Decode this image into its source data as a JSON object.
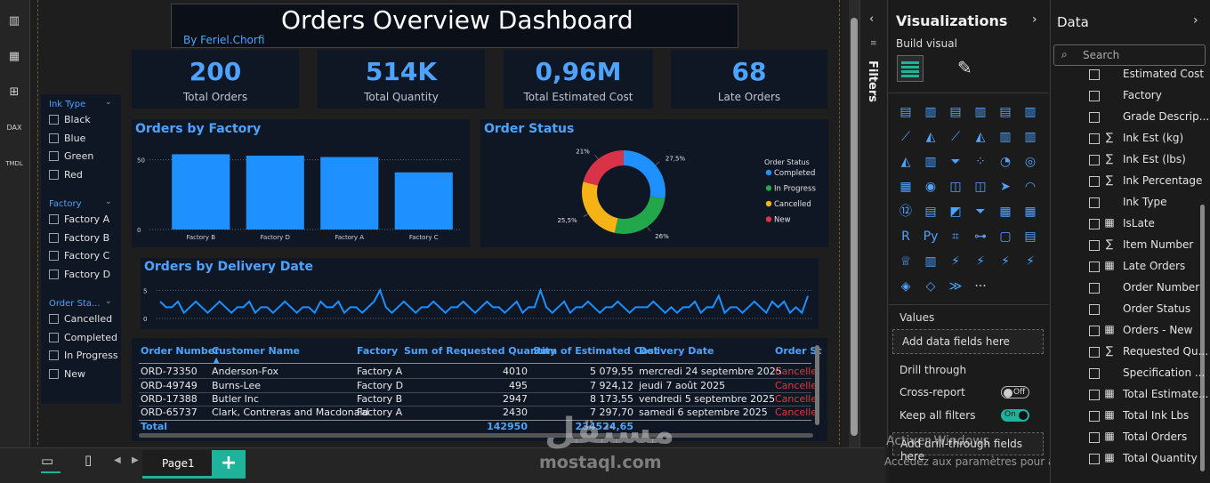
{
  "report": {
    "title": "Orders Overview Dashboard",
    "byline": "By Feriel.Chorfi"
  },
  "kpis": [
    {
      "value": "200",
      "label": "Total Orders"
    },
    {
      "value": "514K",
      "label": "Total Quantity"
    },
    {
      "value": "0,96M",
      "label": "Total Estimated Cost"
    },
    {
      "value": "68",
      "label": "Late Orders"
    }
  ],
  "slicers": [
    {
      "title": "Ink Type",
      "items": [
        "Black",
        "Blue",
        "Green",
        "Red"
      ]
    },
    {
      "title": "Factory",
      "items": [
        "Factory A",
        "Factory B",
        "Factory C",
        "Factory D"
      ]
    },
    {
      "title": "Order Sta...",
      "items": [
        "Cancelled",
        "Completed",
        "In Progress",
        "New"
      ]
    }
  ],
  "chart_data": [
    {
      "type": "bar",
      "title": "Orders by Factory",
      "categories": [
        "Factory B",
        "Factory D",
        "Factory A",
        "Factory C"
      ],
      "values": [
        54,
        53,
        52,
        41
      ],
      "ylim": [
        0,
        60
      ],
      "yticks": [
        "50",
        "0"
      ],
      "color": "#1e90ff"
    },
    {
      "type": "pie",
      "title": "Order Status",
      "legend_title": "Order Status",
      "labels": [
        "Completed",
        "In Progress",
        "Cancelled",
        "New"
      ],
      "values": [
        27.5,
        26,
        25.5,
        21
      ],
      "value_labels": [
        "27,5%",
        "26%",
        "25,5%",
        "21%"
      ],
      "colors": [
        "#1e90ff",
        "#22a84a",
        "#f5b316",
        "#d9334a"
      ]
    },
    {
      "type": "line",
      "title": "Orders by Delivery Date",
      "yticks": [
        "5",
        "0"
      ],
      "ylim": [
        0,
        6
      ],
      "values": [
        3,
        2,
        2,
        3,
        1,
        2,
        3,
        2,
        1,
        2,
        3,
        2,
        1,
        2,
        2,
        3,
        1,
        2,
        2,
        1,
        2,
        3,
        2,
        1,
        2,
        2,
        1,
        3,
        2,
        2,
        3,
        1,
        2,
        2,
        1,
        2,
        3,
        5,
        2,
        1,
        2,
        3,
        2,
        1,
        2,
        2,
        3,
        2,
        1,
        2,
        2,
        3,
        2,
        1,
        2,
        3,
        2,
        2,
        1,
        2,
        3,
        1,
        2,
        2,
        5,
        2,
        1,
        2,
        3,
        1,
        2,
        2,
        3,
        2,
        1,
        2,
        2,
        3,
        2,
        1,
        2,
        2,
        2,
        3,
        2,
        1,
        2,
        1,
        2,
        2,
        3,
        1,
        2,
        2,
        4,
        1,
        2,
        2,
        1,
        2,
        3,
        2,
        1,
        3,
        2,
        3,
        1,
        2,
        1,
        4
      ],
      "color": "#1e90ff"
    }
  ],
  "table": {
    "columns": [
      "Order Number",
      "Customer Name",
      "Factory",
      "Sum of Requested Quantity",
      "Sum of Estimated Cost",
      "Delivery Date",
      "Order St"
    ],
    "rows": [
      [
        "ORD-73350",
        "Anderson-Fox",
        "Factory A",
        "4010",
        "5 079,55",
        "mercredi 24 septembre 2025",
        "Cancelle"
      ],
      [
        "ORD-49749",
        "Burns-Lee",
        "Factory D",
        "495",
        "7 924,12",
        "jeudi 7 août 2025",
        "Cancelle"
      ],
      [
        "ORD-17388",
        "Butler Inc",
        "Factory B",
        "2947",
        "8 173,55",
        "vendredi 5 septembre 2025",
        "Cancelle"
      ],
      [
        "ORD-65737",
        "Clark, Contreras and Macdonald",
        "Factory A",
        "2430",
        "7 297,70",
        "samedi 6 septembre 2025",
        "Cancelle"
      ]
    ],
    "total_label": "Total",
    "total_qty": "142950",
    "total_cost": "234524,65"
  },
  "pages": {
    "page1": "Page1",
    "add": "+"
  },
  "filters_label": "Filters",
  "visualizations": {
    "title": "Visualizations",
    "build_visual": "Build visual",
    "values_label": "Values",
    "add_data_fields": "Add data fields here",
    "drill_through": "Drill through",
    "cross_report": "Cross-report",
    "cross_report_state": "Off",
    "keep_all_filters": "Keep all filters",
    "keep_all_filters_state": "On",
    "add_drill_fields": "Add drill-through fields here"
  },
  "data_pane": {
    "title": "Data",
    "search_placeholder": "Search",
    "fields": [
      {
        "name": "Estimated Cost",
        "icon": "none"
      },
      {
        "name": "Factory",
        "icon": "none"
      },
      {
        "name": "Grade Descrip...",
        "icon": "none"
      },
      {
        "name": "Ink Est (kg)",
        "icon": "sigma"
      },
      {
        "name": "Ink Est (lbs)",
        "icon": "sigma"
      },
      {
        "name": "Ink Percentage",
        "icon": "sigma"
      },
      {
        "name": "Ink Type",
        "icon": "none"
      },
      {
        "name": "IsLate",
        "icon": "calc"
      },
      {
        "name": "Item Number",
        "icon": "sigma"
      },
      {
        "name": "Late Orders",
        "icon": "calc"
      },
      {
        "name": "Order Number",
        "icon": "none"
      },
      {
        "name": "Order Status",
        "icon": "none"
      },
      {
        "name": "Orders - New",
        "icon": "calc"
      },
      {
        "name": "Requested Qu...",
        "icon": "sigma"
      },
      {
        "name": "Specification ...",
        "icon": "none"
      },
      {
        "name": "Total Estimate...",
        "icon": "calc"
      },
      {
        "name": "Total Ink Lbs",
        "icon": "calc"
      },
      {
        "name": "Total Orders",
        "icon": "calc"
      },
      {
        "name": "Total Quantity",
        "icon": "calc"
      }
    ]
  },
  "overlay": {
    "activate_line1": "Activer Windows",
    "activate_line2": "Accédez aux paramètres pour activer Windows.",
    "watermark_ar": "مستقل",
    "watermark_url": "mostaql.com"
  }
}
